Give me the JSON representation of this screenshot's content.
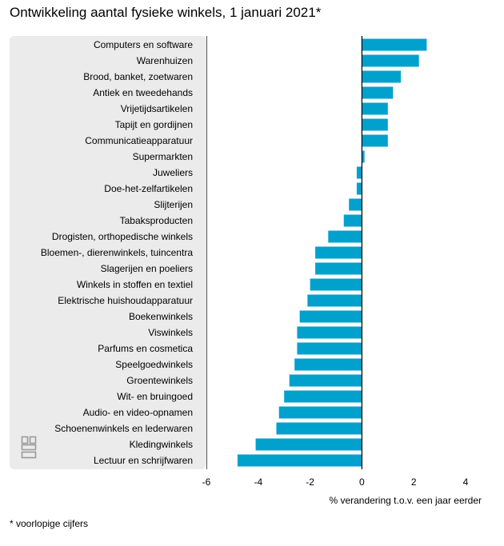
{
  "title": "Ontwikkeling aantal fysieke winkels, 1 januari 2021*",
  "footnote": "* voorlopige cijfers",
  "colors": {
    "bar": "#00a1cd",
    "panel": "#ebebeb",
    "axis": "#000000",
    "grid": "#555555"
  },
  "logo_icon": "cbs-logo-icon",
  "chart_data": {
    "type": "bar",
    "orientation": "horizontal",
    "title": "Ontwikkeling aantal fysieke winkels, 1 januari 2021*",
    "xlabel": "% verandering t.o.v. een jaar eerder",
    "ylabel": "",
    "xlim": [
      -6,
      4
    ],
    "xticks": [
      "-6",
      "-4",
      "-2",
      "0",
      "2",
      "4"
    ],
    "xtick_values": [
      -6,
      -4,
      -2,
      0,
      2,
      4
    ],
    "categories": [
      "Computers en software",
      "Warenhuizen",
      "Brood, banket, zoetwaren",
      "Antiek en tweedehands",
      "Vrijetijdsartikelen",
      "Tapijt en gordijnen",
      "Communicatieapparatuur",
      "Supermarkten",
      "Juweliers",
      "Doe-het-zelfartikelen",
      "Slijterijen",
      "Tabaksproducten",
      "Drogisten, orthopedische winkels",
      "Bloemen-, dierenwinkels, tuincentra",
      "Slagerijen en poeliers",
      "Winkels in stoffen en textiel",
      "Elektrische huishoudapparatuur",
      "Boekenwinkels",
      "Viswinkels",
      "Parfums en cosmetica",
      "Speelgoedwinkels",
      "Groentewinkels",
      "Wit- en bruingoed",
      "Audio- en video-opnamen",
      "Schoenenwinkels en lederwaren",
      "Kledingwinkels",
      "Lectuur en schrijfwaren"
    ],
    "values": [
      2.5,
      2.2,
      1.5,
      1.2,
      1.0,
      1.0,
      1.0,
      0.1,
      -0.2,
      -0.2,
      -0.5,
      -0.7,
      -1.3,
      -1.8,
      -1.8,
      -2.0,
      -2.1,
      -2.4,
      -2.5,
      -2.5,
      -2.6,
      -2.8,
      -3.0,
      -3.2,
      -3.3,
      -4.1,
      -4.8
    ]
  }
}
